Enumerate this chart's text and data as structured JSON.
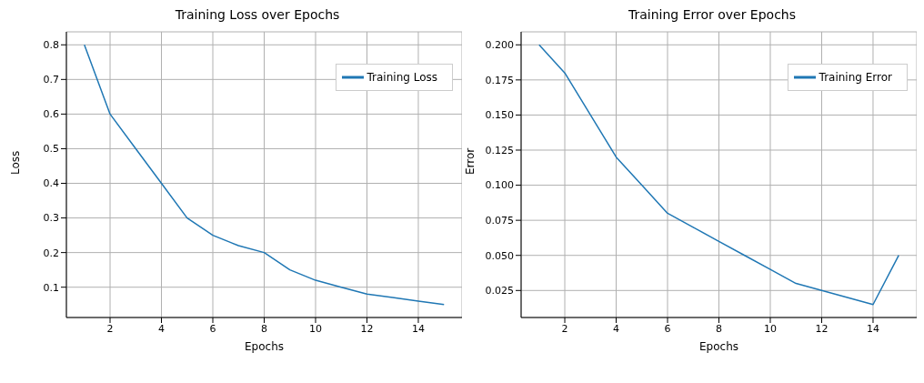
{
  "chart_data": [
    {
      "type": "line",
      "title": "Training Loss over Epochs",
      "xlabel": "Epochs",
      "ylabel": "Loss",
      "x": [
        1,
        2,
        3,
        4,
        5,
        6,
        7,
        8,
        9,
        10,
        11,
        12,
        13,
        14,
        15
      ],
      "series": [
        {
          "name": "Training Loss",
          "color": "#1f77b4",
          "values": [
            0.8,
            0.6,
            0.5,
            0.4,
            0.3,
            0.25,
            0.22,
            0.2,
            0.15,
            0.12,
            0.1,
            0.08,
            0.07,
            0.06,
            0.05
          ]
        }
      ],
      "xlim": [
        0.3,
        15.7
      ],
      "xticks": [
        2,
        4,
        6,
        8,
        10,
        12,
        14
      ],
      "ylim": [
        0.0125,
        0.8375
      ],
      "yticks": [
        0.1,
        0.2,
        0.3,
        0.4,
        0.5,
        0.6,
        0.7,
        0.8
      ],
      "grid": true,
      "legend": "top right"
    },
    {
      "type": "line",
      "title": "Training Error over Epochs",
      "xlabel": "Epochs",
      "ylabel": "Error",
      "x": [
        1,
        2,
        3,
        4,
        5,
        6,
        7,
        8,
        9,
        10,
        11,
        12,
        13,
        14,
        15
      ],
      "series": [
        {
          "name": "Training Error",
          "color": "#1f77b4",
          "values": [
            0.2,
            0.18,
            0.15,
            0.12,
            0.1,
            0.08,
            0.07,
            0.06,
            0.05,
            0.04,
            0.03,
            0.025,
            0.02,
            0.015,
            0.05
          ]
        }
      ],
      "xlim": [
        0.3,
        15.7
      ],
      "xticks": [
        2,
        4,
        6,
        8,
        10,
        12,
        14
      ],
      "ylim": [
        0.00575,
        0.20925
      ],
      "yticks": [
        0.025,
        {
          "value": 0.05,
          "label": "0.050"
        },
        0.075,
        {
          "value": 0.1,
          "label": "0.100"
        },
        0.125,
        {
          "value": 0.15,
          "label": "0.150"
        },
        0.175,
        {
          "value": 0.2,
          "label": "0.200"
        }
      ],
      "grid": true,
      "legend": "top right"
    }
  ]
}
